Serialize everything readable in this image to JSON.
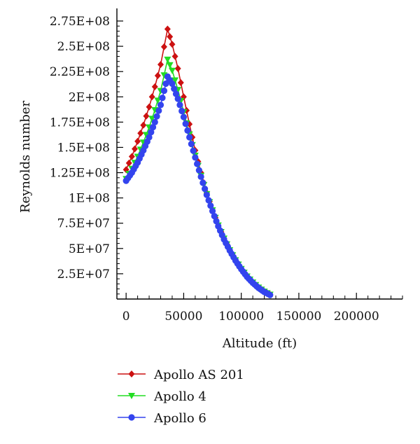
{
  "chart_data": {
    "type": "line",
    "title": "",
    "xlabel": "Altitude (ft)",
    "ylabel": "Reynolds number",
    "xlim": [
      0,
      240000
    ],
    "ylim": [
      0,
      275000000
    ],
    "x_ticks": [
      0,
      50000,
      100000,
      150000,
      200000
    ],
    "x_tick_labels": [
      "0",
      "50000",
      "100000",
      "150000",
      "200000"
    ],
    "y_ticks": [
      25000000,
      50000000,
      75000000,
      100000000,
      125000000,
      150000000,
      175000000,
      200000000,
      225000000,
      250000000,
      275000000
    ],
    "y_tick_labels": [
      "2.5E+07",
      "5E+07",
      "7.5E+07",
      "1E+08",
      "1.25E+08",
      "1.5E+08",
      "1.75E+08",
      "2E+08",
      "2.25E+08",
      "2.5E+08",
      "2.75E+08"
    ],
    "grid": false,
    "legend_position": "bottom-left",
    "series": [
      {
        "name": "Apollo AS 201",
        "color": "#cc1111",
        "marker": "diamond",
        "x": [
          0,
          5000,
          10000,
          15000,
          20000,
          25000,
          30000,
          36000,
          40000,
          45000,
          50000,
          55000,
          60000,
          65000,
          70000,
          75000,
          80000,
          85000,
          90000,
          95000,
          100000,
          105000,
          110000,
          115000,
          120000,
          125000
        ],
        "y": [
          128000000,
          141000000,
          156000000,
          172000000,
          190000000,
          210000000,
          232000000,
          267000000,
          252000000,
          228000000,
          200000000,
          173000000,
          147000000,
          125000000,
          105000000,
          88000000,
          73000000,
          60000000,
          48500000,
          38500000,
          30000000,
          22500000,
          16500000,
          11500000,
          7500000,
          4500000
        ]
      },
      {
        "name": "Apollo 4",
        "color": "#22dd22",
        "marker": "triangle-down",
        "x": [
          0,
          5000,
          10000,
          15000,
          20000,
          25000,
          30000,
          36000,
          40000,
          45000,
          50000,
          55000,
          60000,
          65000,
          70000,
          75000,
          80000,
          85000,
          90000,
          95000,
          100000,
          105000,
          110000,
          115000,
          120000,
          125000
        ],
        "y": [
          119000000,
          129000000,
          141000000,
          155000000,
          170000000,
          187000000,
          206000000,
          237000000,
          226000000,
          207000000,
          185000000,
          163000000,
          142000000,
          122000000,
          104000000,
          88000000,
          73000000,
          60000000,
          48500000,
          38500000,
          30000000,
          22500000,
          16500000,
          11500000,
          7500000,
          4500000
        ]
      },
      {
        "name": "Apollo 6",
        "color": "#3344ee",
        "marker": "circle",
        "x": [
          0,
          5000,
          10000,
          15000,
          20000,
          25000,
          30000,
          36000,
          40000,
          45000,
          50000,
          55000,
          60000,
          65000,
          70000,
          75000,
          80000,
          85000,
          90000,
          95000,
          100000,
          105000,
          110000,
          115000,
          120000,
          125000
        ],
        "y": [
          117000000,
          125000000,
          135000000,
          147000000,
          160000000,
          175000000,
          192000000,
          220000000,
          213000000,
          198000000,
          180000000,
          160000000,
          140000000,
          121000000,
          103000000,
          87000000,
          72000000,
          59000000,
          48000000,
          38000000,
          29500000,
          22000000,
          16000000,
          11000000,
          7000000,
          4000000
        ]
      }
    ]
  }
}
